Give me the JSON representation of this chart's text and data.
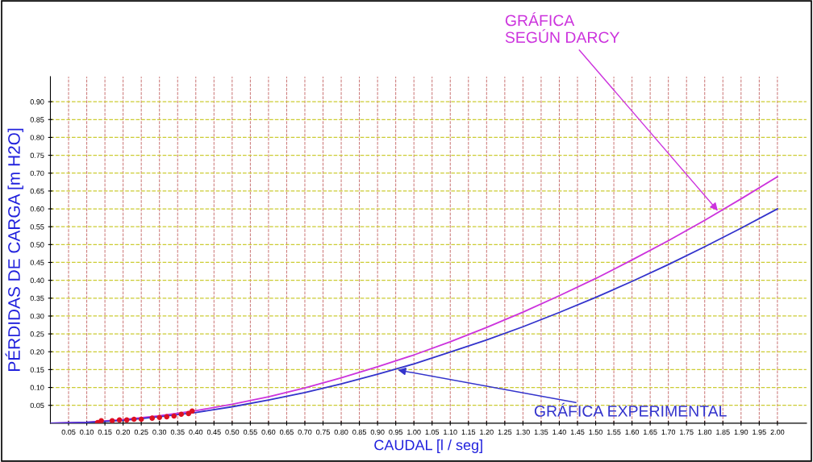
{
  "chart_data": {
    "type": "line",
    "xlabel": "CAUDAL [l / seg]",
    "ylabel": "PÉRDIDAS DE CARGA [m H2O]",
    "x": [
      0,
      0.1,
      0.2,
      0.3,
      0.4,
      0.5,
      0.6,
      0.7,
      0.8,
      0.9,
      1.0,
      1.1,
      1.2,
      1.3,
      1.4,
      1.5,
      1.6,
      1.7,
      1.8,
      1.9,
      2.0
    ],
    "series": [
      {
        "color": "#cc33dd",
        "values": [
          0,
          0.003,
          0.01,
          0.021,
          0.035,
          0.053,
          0.074,
          0.099,
          0.127,
          0.158,
          0.191,
          0.228,
          0.268,
          0.311,
          0.357,
          0.405,
          0.457,
          0.511,
          0.568,
          0.628,
          0.69
        ]
      },
      {
        "color": "#3333cc",
        "values": [
          0,
          0.002,
          0.008,
          0.018,
          0.03,
          0.046,
          0.065,
          0.086,
          0.11,
          0.137,
          0.166,
          0.199,
          0.233,
          0.27,
          0.31,
          0.352,
          0.397,
          0.444,
          0.494,
          0.546,
          0.6
        ]
      },
      {
        "type": "scatter",
        "color": "#dd1122",
        "x": [
          0.13,
          0.14,
          0.17,
          0.19,
          0.21,
          0.23,
          0.25,
          0.28,
          0.3,
          0.32,
          0.34,
          0.36,
          0.38,
          0.39
        ],
        "values": [
          0.002,
          0.007,
          0.007,
          0.009,
          0.009,
          0.011,
          0.011,
          0.014,
          0.016,
          0.018,
          0.02,
          0.025,
          0.027,
          0.034
        ]
      }
    ],
    "annotations": [
      {
        "text": "GRÁFICA\nSEGÚN DARCY",
        "x": 1.84,
        "y": 0.59
      },
      {
        "text": "GRÁFICA EXPERIMENTAL",
        "x": 0.95,
        "y": 0.15
      }
    ],
    "xlim": [
      0,
      2.08
    ],
    "ylim": [
      0,
      0.97
    ],
    "xticks": [
      0.05,
      {
        "value": 0.1,
        "label": "0.10"
      },
      0.15,
      {
        "value": 0.2,
        "label": "0.20"
      },
      0.25,
      {
        "value": 0.3,
        "label": "0.30"
      },
      0.35,
      {
        "value": 0.4,
        "label": "0.40"
      },
      0.45,
      {
        "value": 0.5,
        "label": "0.50"
      },
      0.55,
      {
        "value": 0.6,
        "label": "0.60"
      },
      0.65,
      {
        "value": 0.7,
        "label": "0.70"
      },
      0.75,
      {
        "value": 0.8,
        "label": "0.80"
      },
      0.85,
      {
        "value": 0.9,
        "label": "0.90"
      },
      0.95,
      {
        "value": 1.0,
        "label": "1.00"
      },
      1.05,
      {
        "value": 1.1,
        "label": "1.10"
      },
      1.15,
      {
        "value": 1.2,
        "label": "1.20"
      },
      1.25,
      {
        "value": 1.3,
        "label": "1.30"
      },
      1.35,
      {
        "value": 1.4,
        "label": "1.40"
      },
      1.45,
      {
        "value": 1.5,
        "label": "1.50"
      },
      1.55,
      {
        "value": 1.6,
        "label": "1.60"
      },
      1.65,
      {
        "value": 1.7,
        "label": "1.70"
      },
      1.75,
      {
        "value": 1.8,
        "label": "1.80"
      },
      1.85,
      {
        "value": 1.9,
        "label": "1.90"
      },
      1.95,
      {
        "value": 2.0,
        "label": "2.00"
      }
    ],
    "yticks": [
      0.05,
      {
        "value": 0.1,
        "label": "0.10"
      },
      0.15,
      {
        "value": 0.2,
        "label": "0.20"
      },
      0.25,
      {
        "value": 0.3,
        "label": "0.30"
      },
      0.35,
      {
        "value": 0.4,
        "label": "0.40"
      },
      0.45,
      {
        "value": 0.5,
        "label": "0.50"
      },
      0.55,
      {
        "value": 0.6,
        "label": "0.60"
      },
      0.65,
      {
        "value": 0.7,
        "label": "0.70"
      },
      0.75,
      {
        "value": 0.8,
        "label": "0.80"
      },
      0.85,
      {
        "value": 0.9,
        "label": "0.90"
      }
    ],
    "grid": true,
    "marker": "none",
    "line_style": "solid"
  }
}
